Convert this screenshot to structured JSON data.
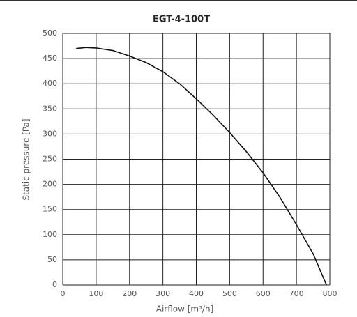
{
  "chart_data": {
    "type": "line",
    "title": "EGT-4-100T",
    "x_label": "Airflow [m³/h]",
    "y_label": "Static pressure [Pa]",
    "x": [
      40,
      70,
      100,
      150,
      200,
      250,
      300,
      350,
      400,
      450,
      500,
      550,
      600,
      650,
      700,
      750,
      790
    ],
    "series": [
      {
        "name": "EGT-4-100T",
        "color": "#111111",
        "values": [
          470,
          472,
          471,
          466,
          455,
          442,
          424,
          400,
          370,
          338,
          303,
          265,
          223,
          175,
          120,
          62,
          0
        ]
      }
    ],
    "xlim": [
      0,
      800
    ],
    "xticks": [
      0,
      100,
      200,
      300,
      400,
      500,
      600,
      700,
      800
    ],
    "ylim": [
      0,
      500
    ],
    "yticks": [
      0,
      50,
      100,
      150,
      200,
      250,
      300,
      350,
      400,
      450,
      500
    ],
    "grid": true
  }
}
